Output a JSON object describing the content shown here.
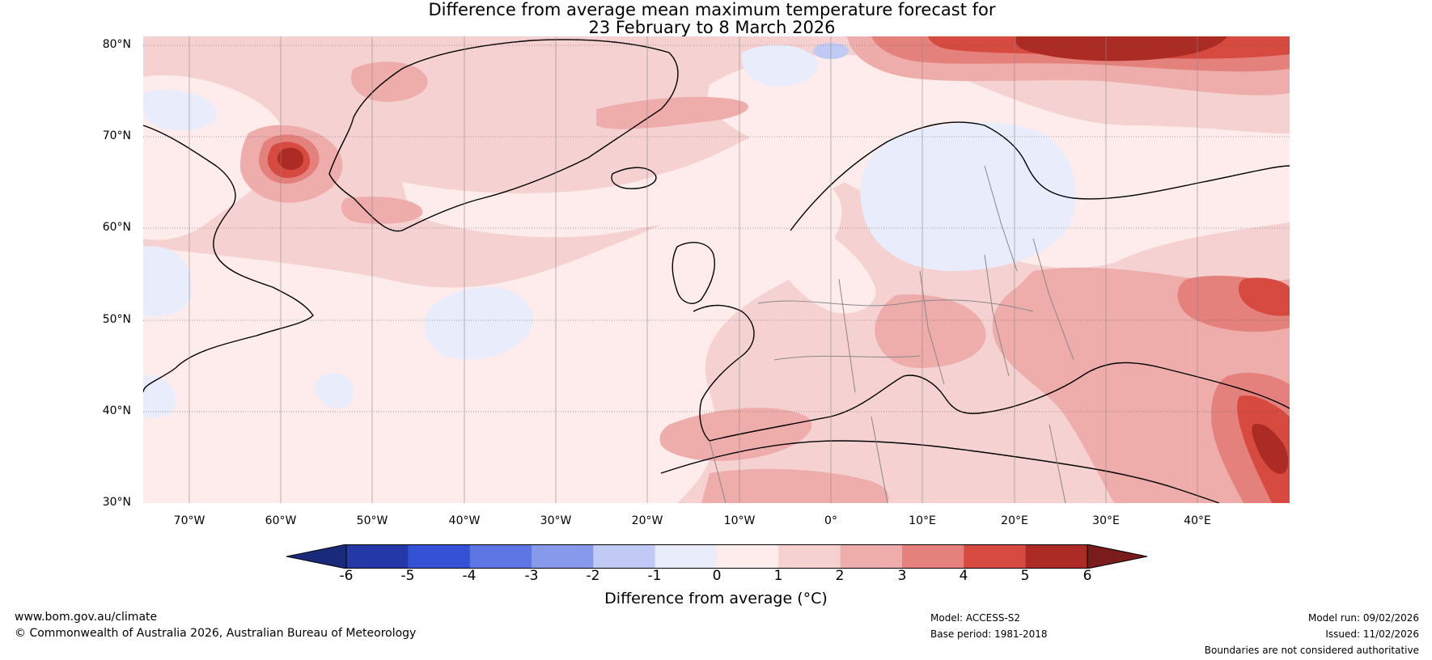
{
  "title": {
    "line1": "Difference from average mean maximum temperature forecast for",
    "line2": "23 February to 8 March 2026"
  },
  "map": {
    "latitude_labels": [
      "80°N",
      "70°N",
      "60°N",
      "50°N",
      "40°N",
      "30°N"
    ],
    "longitude_labels": [
      "70°W",
      "60°W",
      "50°W",
      "40°W",
      "30°W",
      "20°W",
      "10°W",
      "0°",
      "10°E",
      "20°E",
      "30°E",
      "40°E"
    ],
    "extent": {
      "lon_min": -75,
      "lon_max": 50,
      "lat_min": 30,
      "lat_max": 81
    }
  },
  "colorbar": {
    "ticks": [
      "-6",
      "-5",
      "-4",
      "-3",
      "-2",
      "-1",
      "0",
      "1",
      "2",
      "3",
      "4",
      "5",
      "6"
    ],
    "colors": [
      "#1a2a7a",
      "#2539a6",
      "#3352d6",
      "#5d76e3",
      "#8799ea",
      "#c0caf4",
      "#e8ecfb",
      "#fdeceb",
      "#f5d2d1",
      "#eeadab",
      "#e5817c",
      "#d74a40",
      "#ad2b25",
      "#7a1c1c"
    ],
    "label": "Difference from average (°C)"
  },
  "footer": {
    "website": "www.bom.gov.au/climate",
    "copyright": "© Commonwealth of Australia 2026, Australian Bureau of Meteorology",
    "model": "Model: ACCESS-S2",
    "base_period": "Base period: 1981-2018",
    "model_run": "Model run: 09/02/2026",
    "issued": "Issued: 11/02/2026",
    "disclaimer": "Boundaries are not considered authoritative"
  }
}
